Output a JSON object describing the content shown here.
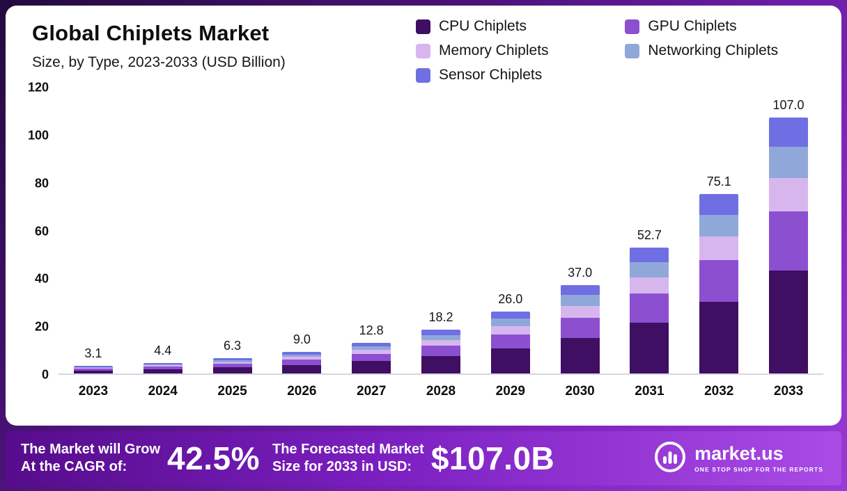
{
  "title": "Global Chiplets Market",
  "subtitle": "Size, by Type, 2023-2033 (USD Billion)",
  "chart_data": {
    "type": "bar",
    "stacked": true,
    "title": "Global Chiplets Market Size, by Type, 2023-2033 (USD Billion)",
    "xlabel": "",
    "ylabel": "",
    "ylim": [
      0,
      120
    ],
    "yticks": [
      0,
      20,
      40,
      60,
      80,
      100,
      120
    ],
    "grid": false,
    "legend_position": "top-right",
    "categories": [
      "2023",
      "2024",
      "2025",
      "2026",
      "2027",
      "2028",
      "2029",
      "2030",
      "2031",
      "2032",
      "2033"
    ],
    "totals": [
      3.1,
      4.4,
      6.3,
      9.0,
      12.8,
      18.2,
      26.0,
      37.0,
      52.7,
      75.1,
      107.0
    ],
    "series": [
      {
        "name": "CPU Chiplets",
        "color": "#3e0f63",
        "values": [
          1.2,
          1.8,
          2.5,
          3.6,
          5.1,
          7.3,
          10.4,
          14.8,
          21.1,
          30.0,
          43.0
        ]
      },
      {
        "name": "GPU Chiplets",
        "color": "#8c4fd0",
        "values": [
          0.7,
          1.0,
          1.5,
          2.1,
          3.0,
          4.2,
          6.0,
          8.5,
          12.2,
          17.3,
          24.7
        ]
      },
      {
        "name": "Memory Chiplets",
        "color": "#d7b6ee",
        "values": [
          0.4,
          0.6,
          0.8,
          1.2,
          1.7,
          2.4,
          3.4,
          4.9,
          6.9,
          9.9,
          14.1
        ]
      },
      {
        "name": "Networking Chiplets",
        "color": "#8fa8d9",
        "values": [
          0.4,
          0.5,
          0.8,
          1.1,
          1.5,
          2.2,
          3.1,
          4.5,
          6.3,
          9.0,
          12.9
        ]
      },
      {
        "name": "Sensor Chiplets",
        "color": "#6f6fe3",
        "values": [
          0.4,
          0.5,
          0.7,
          1.0,
          1.5,
          2.1,
          3.1,
          4.3,
          6.2,
          8.9,
          12.3
        ]
      }
    ]
  },
  "banner": {
    "cagr_label_line1": "The Market will Grow",
    "cagr_label_line2": "At the CAGR of:",
    "cagr_value": "42.5%",
    "forecast_label_line1": "The Forecasted Market",
    "forecast_label_line2": "Size for 2033 in USD:",
    "forecast_value": "$107.0B",
    "brand": "market.us",
    "brand_tagline": "ONE STOP SHOP FOR THE REPORTS"
  },
  "colors": {
    "frame_gradient_start": "#230a3e",
    "frame_gradient_end": "#9a3ad8",
    "banner_gradient_start": "#560c8c",
    "banner_gradient_end": "#a94be5",
    "card_background": "#ffffff",
    "axis_line": "#d6d6e0",
    "text_dark": "#0d0d12"
  }
}
